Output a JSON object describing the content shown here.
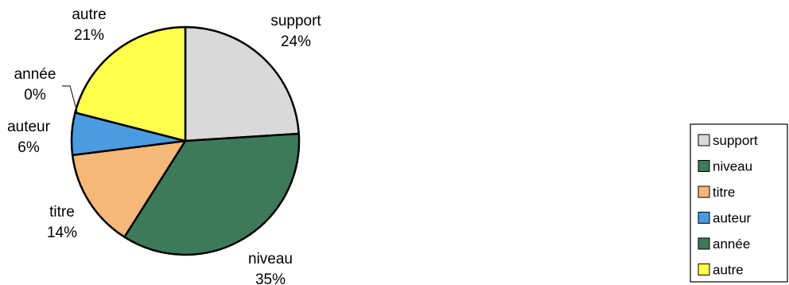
{
  "chart_data": {
    "type": "pie",
    "title": "",
    "slices": [
      {
        "label": "support",
        "value": 24,
        "value_label": "24%",
        "color": "#d9d9d9"
      },
      {
        "label": "niveau",
        "value": 35,
        "value_label": "35%",
        "color": "#3c7a5a"
      },
      {
        "label": "titre",
        "value": 14,
        "value_label": "14%",
        "color": "#f5b878"
      },
      {
        "label": "auteur",
        "value": 6,
        "value_label": "6%",
        "color": "#4a9be0"
      },
      {
        "label": "année",
        "value": 0,
        "value_label": "0%",
        "color": "#3c7a5a"
      },
      {
        "label": "autre",
        "value": 21,
        "value_label": "21%",
        "color": "#ffff4d"
      }
    ],
    "start_angle_deg": 0,
    "direction": "clockwise",
    "legend": {
      "position": "right",
      "items": [
        "support",
        "niveau",
        "titre",
        "auteur",
        "année",
        "autre"
      ]
    }
  }
}
